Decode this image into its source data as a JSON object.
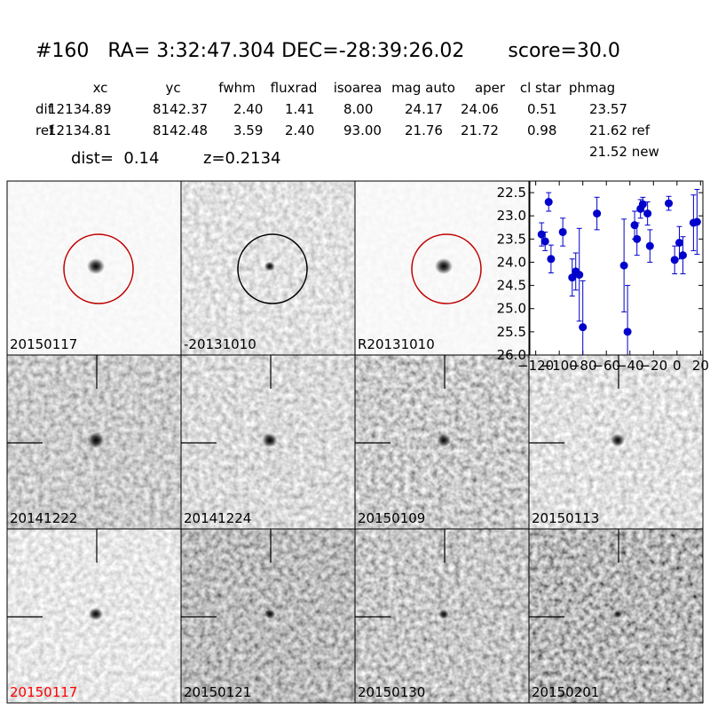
{
  "header": {
    "title": "#160   RA= 3:32:47.304 DEC=-28:39:26.02       score=30.0"
  },
  "table": {
    "columns": [
      "xc",
      "yc",
      "fwhm",
      "fluxrad",
      "isoarea",
      "mag auto",
      "aper",
      "cl star",
      "phmag"
    ],
    "rows": [
      {
        "label": "dif",
        "values": [
          "12134.89",
          "8142.37",
          "2.40",
          "1.41",
          "8.00",
          "24.17",
          "24.06",
          "0.51",
          "23.57"
        ]
      },
      {
        "label": "ref",
        "values": [
          "12134.81",
          "8142.48",
          "3.59",
          "2.40",
          "93.00",
          "21.76",
          "21.72",
          "0.98",
          "21.62 ref"
        ]
      }
    ],
    "extra": "21.52 new",
    "dist": "dist=  0.14",
    "z": "z=0.2134"
  },
  "panels": [
    {
      "label": "20150117",
      "label_color": "#000000"
    },
    {
      "label": "-20131010",
      "label_color": "#000000"
    },
    {
      "label": "R20131010",
      "label_color": "#000000"
    },
    {
      "label": "20141222",
      "label_color": "#000000"
    },
    {
      "label": "20141224",
      "label_color": "#000000"
    },
    {
      "label": "20150109",
      "label_color": "#000000"
    },
    {
      "label": "20150113",
      "label_color": "#000000"
    },
    {
      "label": "20150117",
      "label_color": "#ff0000"
    },
    {
      "label": "20150121",
      "label_color": "#000000"
    },
    {
      "label": "20150130",
      "label_color": "#000000"
    },
    {
      "label": "20150201",
      "label_color": "#000000"
    }
  ],
  "chart_data": {
    "type": "scatter",
    "color": "#0000cc",
    "x": [
      -115,
      -112,
      -109,
      -107,
      -97,
      -89,
      -86,
      -83,
      -80,
      -68,
      -45,
      -42,
      -36,
      -34,
      -31,
      -29,
      -25,
      -23,
      -7,
      -2,
      2,
      5,
      14,
      17
    ],
    "values": [
      23.4,
      23.55,
      22.7,
      23.93,
      23.35,
      24.33,
      24.2,
      24.27,
      25.4,
      22.95,
      24.07,
      25.5,
      23.2,
      23.5,
      22.85,
      22.75,
      22.95,
      23.65,
      22.73,
      23.95,
      23.58,
      23.85,
      23.15,
      23.13
    ],
    "errors": [
      0.25,
      0.2,
      0.2,
      0.3,
      0.3,
      0.4,
      0.4,
      1.0,
      1.0,
      0.35,
      1.0,
      1.0,
      0.3,
      0.35,
      0.2,
      0.15,
      0.25,
      0.35,
      0.15,
      0.3,
      0.35,
      0.4,
      0.6,
      0.7
    ],
    "xlim": [
      -125,
      22
    ],
    "ylim": [
      26.0,
      22.25
    ],
    "xticks": [
      {
        "value": -120,
        "label": "−120"
      },
      {
        "value": -100,
        "label": "−100"
      },
      {
        "value": -80,
        "label": "−80"
      },
      {
        "value": -60,
        "label": "−60"
      },
      {
        "value": -40,
        "label": "−40"
      },
      {
        "value": -20,
        "label": "−20"
      },
      0,
      20
    ],
    "yticks": [
      22.5,
      {
        "value": 23,
        "label": "23.0"
      },
      23.5,
      {
        "value": 24,
        "label": "24.0"
      },
      24.5,
      {
        "value": 25,
        "label": "25.0"
      },
      25.5,
      {
        "value": 26,
        "label": "26.0"
      }
    ]
  }
}
